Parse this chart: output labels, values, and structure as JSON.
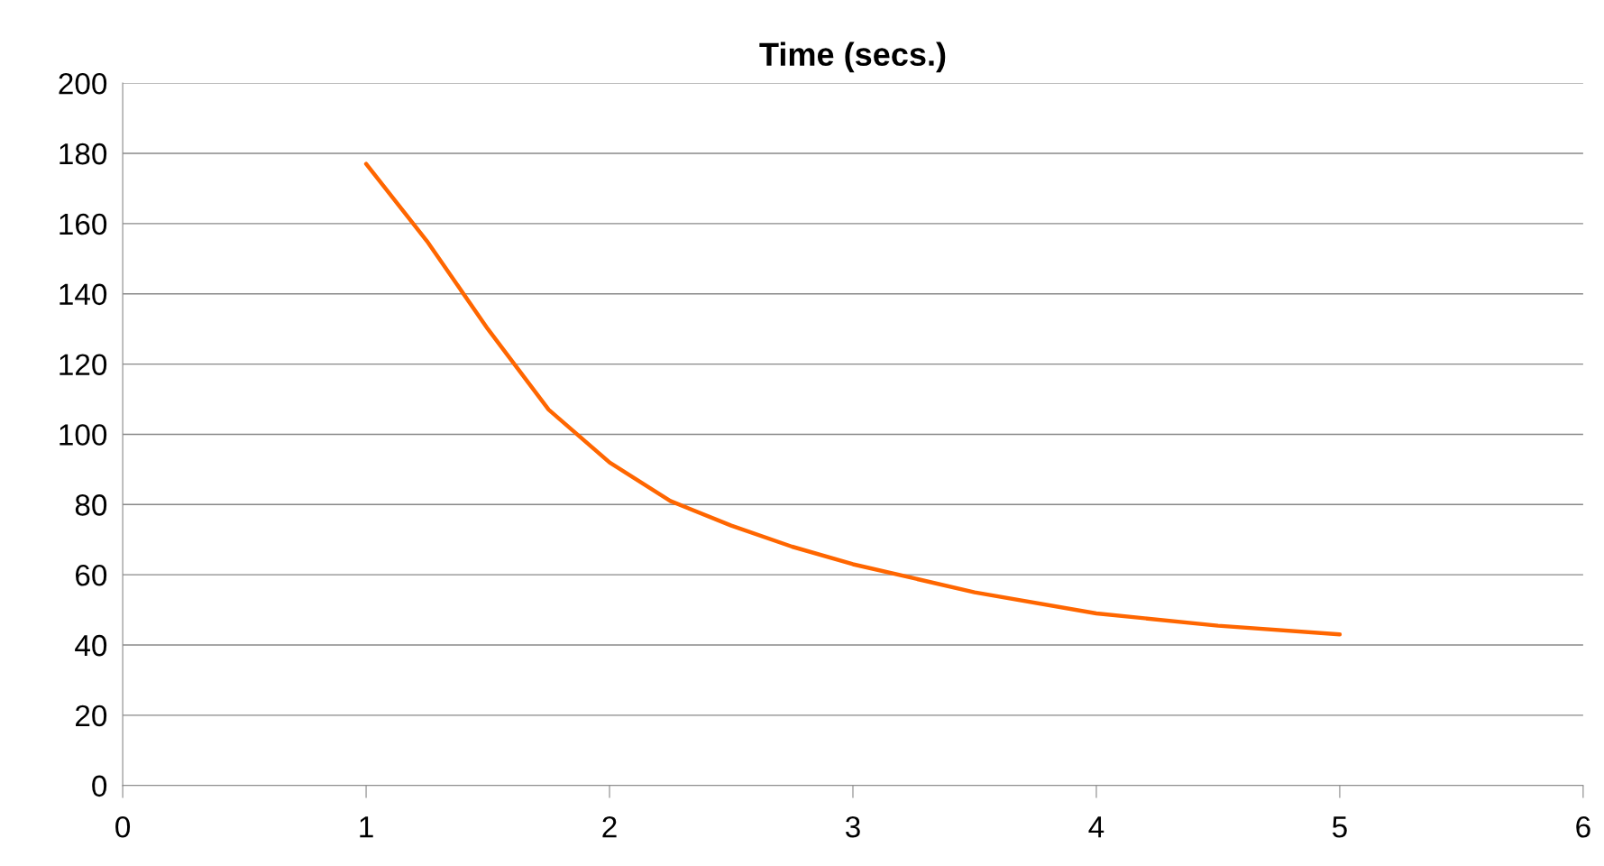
{
  "chart_data": {
    "type": "line",
    "title": "Time (secs.)",
    "x": [
      1,
      1.25,
      1.5,
      1.75,
      2,
      2.25,
      2.5,
      2.75,
      3,
      3.5,
      4,
      4.5,
      5
    ],
    "series": [
      {
        "color": "#ff6600",
        "values": [
          177,
          155,
          130,
          107,
          92,
          81,
          74,
          68,
          63,
          55,
          49,
          45.5,
          43
        ]
      }
    ],
    "xlim": [
      0,
      6
    ],
    "xticks": [
      0,
      1,
      2,
      3,
      4,
      5,
      6
    ],
    "ylim": [
      0,
      200
    ],
    "yticks": [
      0,
      20,
      40,
      60,
      80,
      100,
      120,
      140,
      160,
      180,
      200
    ],
    "grid": "y",
    "legend": false,
    "marker": "none",
    "line_style": "solid"
  }
}
